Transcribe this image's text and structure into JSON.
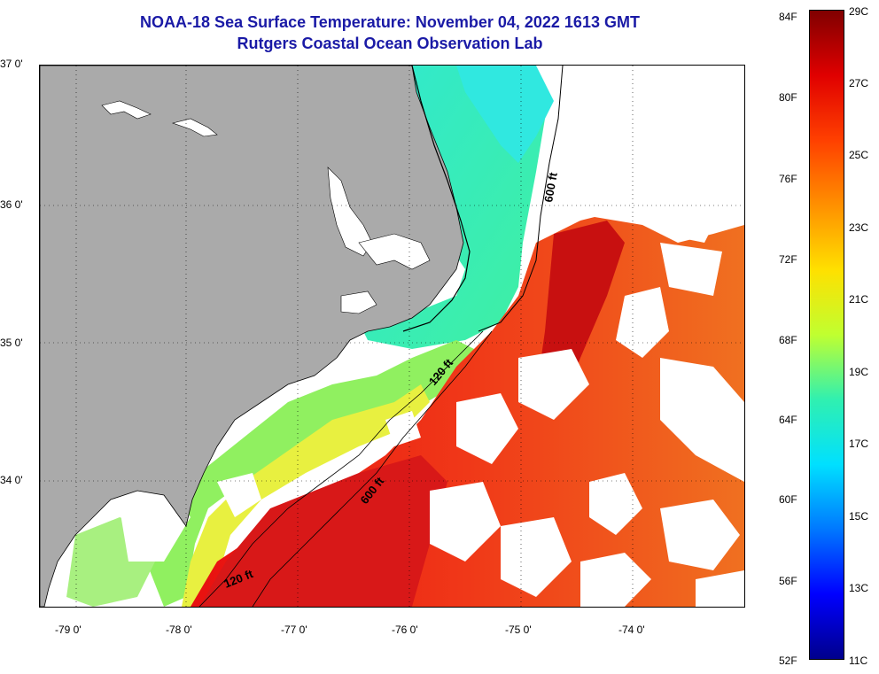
{
  "header": {
    "title": "NOAA-18 Sea Surface Temperature:  November 04, 2022 1613 GMT",
    "subtitle": "Rutgers Coastal Ocean Observation Lab"
  },
  "map": {
    "latitude_labels": [
      "37 0'",
      "36 0'",
      "35 0'",
      "34 0'"
    ],
    "longitude_labels": [
      "-79 0'",
      "-78 0'",
      "-77 0'",
      "-76 0'",
      "-75 0'",
      "-74 0'"
    ],
    "isobath_labels": [
      "600 ft",
      "120 ft",
      "600 ft",
      "120 ft"
    ],
    "land_color": "#aaaaaa",
    "cloud_color": "#ffffff"
  },
  "colorbar": {
    "fahrenheit_labels": [
      "84F",
      "80F",
      "76F",
      "72F",
      "68F",
      "64F",
      "60F",
      "56F",
      "52F"
    ],
    "celsius_labels": [
      "29C",
      "27C",
      "25C",
      "23C",
      "21C",
      "19C",
      "17C",
      "15C",
      "13C",
      "11C"
    ],
    "scale_colors": [
      "#00008c",
      "#0000ff",
      "#0078ff",
      "#00e0ff",
      "#30f0b0",
      "#c0ff30",
      "#ffe000",
      "#ff9000",
      "#ff4000",
      "#e00000",
      "#800000"
    ]
  }
}
